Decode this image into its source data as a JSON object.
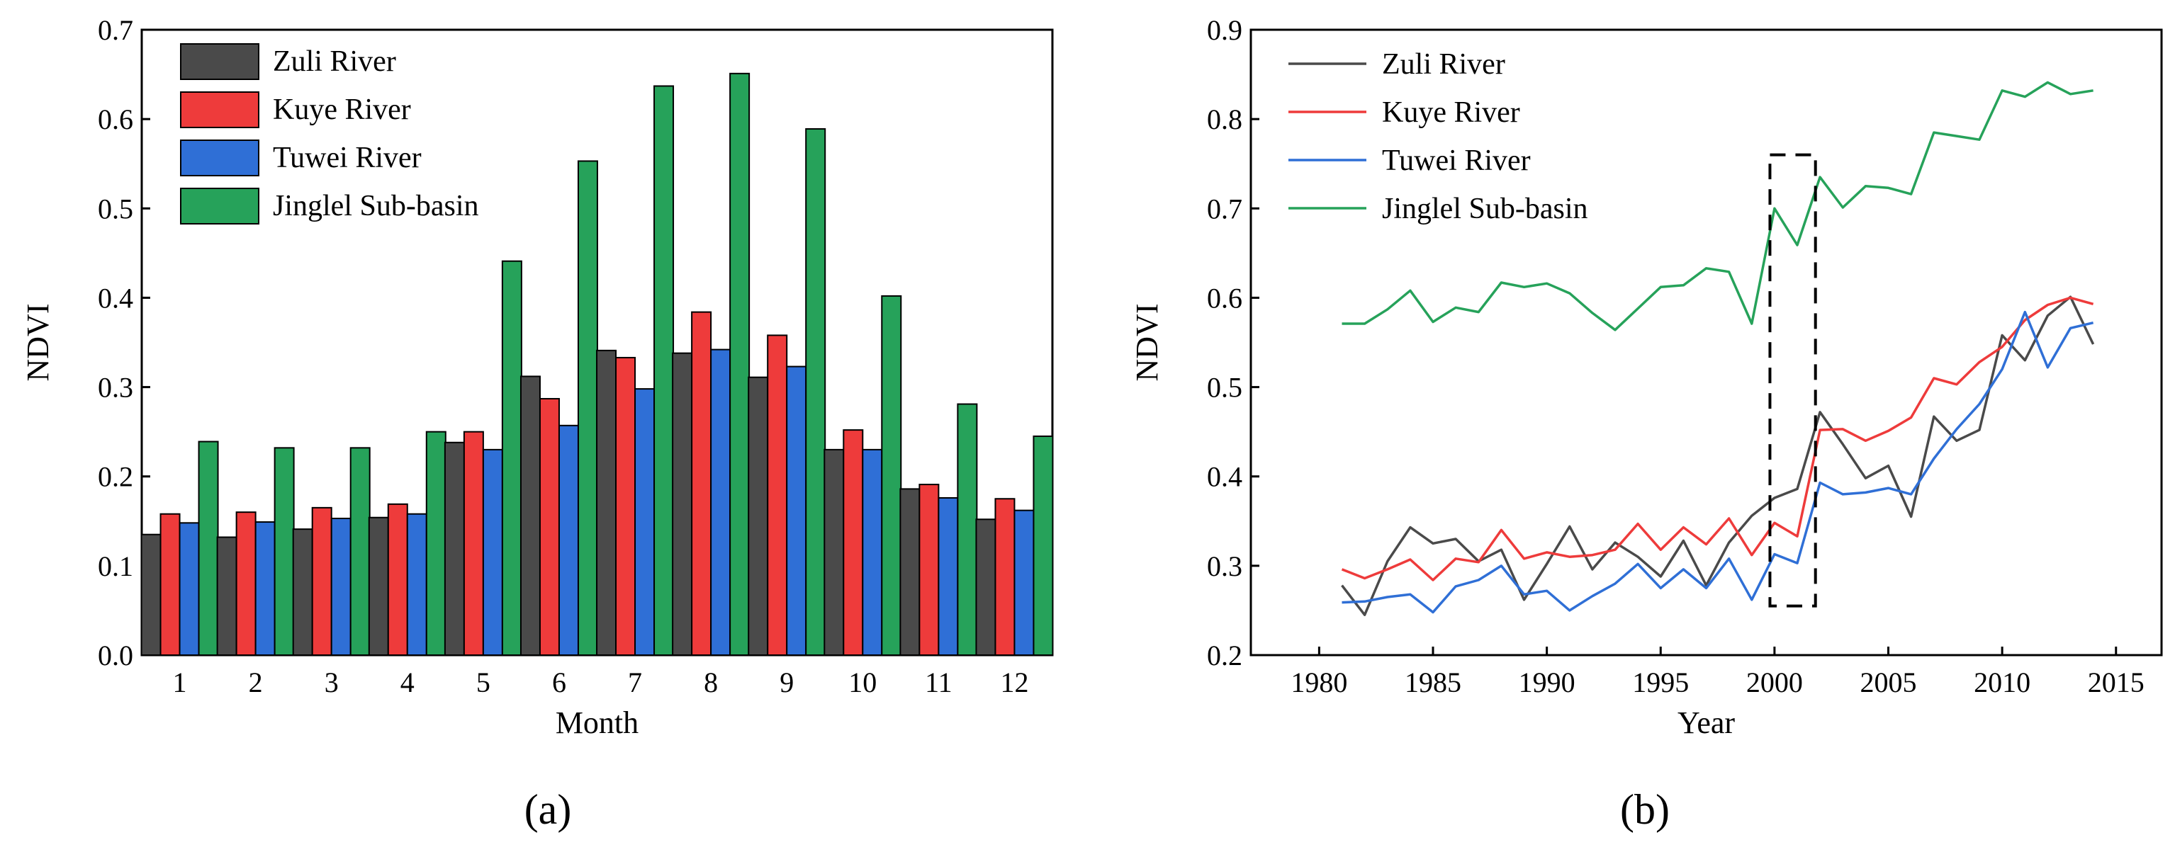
{
  "colors": {
    "zuli": "#4a4a4a",
    "kuye": "#ee3b3b",
    "tuwei": "#2f6fd6",
    "jinglel": "#26a25a"
  },
  "panel_labels": {
    "a": "(a)",
    "b": "(b)"
  },
  "chart_data": [
    {
      "type": "bar",
      "panel": "(a)",
      "xlabel": "Month",
      "ylabel": "NDVI",
      "ylim": [
        0,
        0.7
      ],
      "yticks": [
        "0.0",
        "0.1",
        "0.2",
        "0.3",
        "0.4",
        "0.5",
        "0.6",
        "0.7"
      ],
      "categories": [
        "1",
        "2",
        "3",
        "4",
        "5",
        "6",
        "7",
        "8",
        "9",
        "10",
        "11",
        "12"
      ],
      "legend_position": "top-left",
      "series": [
        {
          "name": "Zuli River",
          "color": "#4a4a4a",
          "values": [
            0.135,
            0.132,
            0.141,
            0.154,
            0.238,
            0.312,
            0.341,
            0.338,
            0.311,
            0.23,
            0.186,
            0.152
          ]
        },
        {
          "name": "Kuye River",
          "color": "#ee3b3b",
          "values": [
            0.158,
            0.16,
            0.165,
            0.169,
            0.25,
            0.287,
            0.333,
            0.384,
            0.358,
            0.252,
            0.191,
            0.175
          ]
        },
        {
          "name": "Tuwei River",
          "color": "#2f6fd6",
          "values": [
            0.148,
            0.149,
            0.153,
            0.158,
            0.23,
            0.257,
            0.298,
            0.342,
            0.323,
            0.23,
            0.176,
            0.162
          ]
        },
        {
          "name": "Jinglel Sub-basin",
          "color": "#26a25a",
          "values": [
            0.239,
            0.232,
            0.232,
            0.25,
            0.441,
            0.553,
            0.637,
            0.651,
            0.589,
            0.402,
            0.281,
            0.245
          ]
        }
      ]
    },
    {
      "type": "line",
      "panel": "(b)",
      "xlabel": "Year",
      "ylabel": "NDVI",
      "xlim": [
        1977,
        2017
      ],
      "ylim": [
        0.2,
        0.9
      ],
      "xticks": [
        "1980",
        "1985",
        "1990",
        "1995",
        "2000",
        "2005",
        "2010",
        "2015"
      ],
      "yticks": [
        "0.2",
        "0.3",
        "0.4",
        "0.5",
        "0.6",
        "0.7",
        "0.8",
        "0.9"
      ],
      "legend_position": "top-left",
      "annotation": {
        "type": "dashed-box",
        "x_range": [
          1999.8,
          2001.8
        ],
        "y_range": [
          0.255,
          0.76
        ]
      },
      "x": [
        1981,
        1982,
        1983,
        1984,
        1985,
        1986,
        1987,
        1988,
        1989,
        1990,
        1991,
        1992,
        1993,
        1994,
        1995,
        1996,
        1997,
        1998,
        1999,
        2000,
        2001,
        2002,
        2003,
        2004,
        2005,
        2006,
        2007,
        2008,
        2009,
        2010,
        2011,
        2012,
        2013,
        2014
      ],
      "series": [
        {
          "name": "Zuli River",
          "color": "#4a4a4a",
          "values": [
            0.278,
            0.245,
            0.305,
            0.343,
            0.325,
            0.33,
            0.305,
            0.318,
            0.262,
            0.302,
            0.344,
            0.296,
            0.326,
            0.31,
            0.288,
            0.328,
            0.278,
            0.326,
            0.356,
            0.376,
            0.386,
            0.472,
            0.436,
            0.398,
            0.412,
            0.355,
            0.467,
            0.44,
            0.452,
            0.558,
            0.53,
            0.58,
            0.601,
            0.548
          ]
        },
        {
          "name": "Kuye River",
          "color": "#ee3b3b",
          "values": [
            0.296,
            0.286,
            0.296,
            0.307,
            0.284,
            0.308,
            0.304,
            0.34,
            0.308,
            0.315,
            0.31,
            0.312,
            0.318,
            0.347,
            0.318,
            0.343,
            0.324,
            0.353,
            0.312,
            0.348,
            0.333,
            0.452,
            0.453,
            0.44,
            0.451,
            0.466,
            0.51,
            0.503,
            0.528,
            0.545,
            0.575,
            0.592,
            0.6,
            0.593
          ]
        },
        {
          "name": "Tuwei River",
          "color": "#2f6fd6",
          "values": [
            0.259,
            0.26,
            0.265,
            0.268,
            0.248,
            0.277,
            0.284,
            0.3,
            0.268,
            0.272,
            0.25,
            0.266,
            0.28,
            0.302,
            0.275,
            0.296,
            0.275,
            0.308,
            0.262,
            0.313,
            0.303,
            0.393,
            0.38,
            0.382,
            0.387,
            0.38,
            0.42,
            0.453,
            0.481,
            0.52,
            0.584,
            0.522,
            0.566,
            0.572
          ]
        },
        {
          "name": "Jinglel Sub-basin",
          "color": "#26a25a",
          "values": [
            0.571,
            0.571,
            0.587,
            0.608,
            0.573,
            0.589,
            0.584,
            0.617,
            0.612,
            0.616,
            0.605,
            0.583,
            0.564,
            0.588,
            0.612,
            0.614,
            0.633,
            0.629,
            0.571,
            0.7,
            0.659,
            0.735,
            0.701,
            0.725,
            0.723,
            0.716,
            0.785,
            0.781,
            0.777,
            0.832,
            0.825,
            0.841,
            0.828,
            0.832
          ]
        }
      ]
    }
  ]
}
